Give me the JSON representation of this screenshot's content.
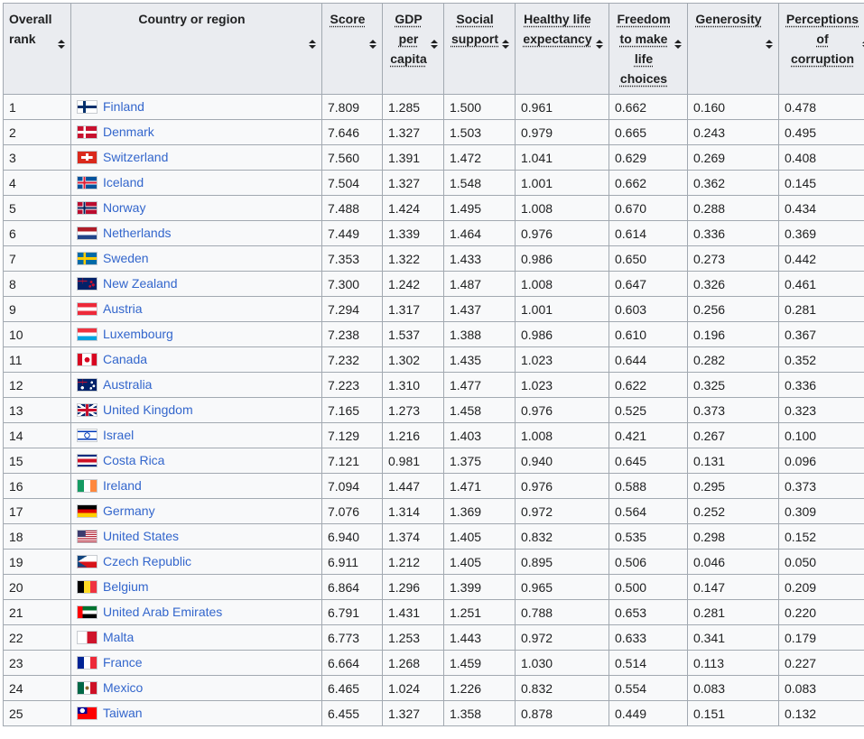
{
  "table": {
    "headers": [
      {
        "key": "rank",
        "label": "Overall rank",
        "abbr": false
      },
      {
        "key": "country",
        "label": "Country or region",
        "abbr": false
      },
      {
        "key": "score",
        "label": "Score",
        "abbr": true
      },
      {
        "key": "gdp",
        "label": "GDP per capita",
        "abbr": true
      },
      {
        "key": "social",
        "label": "Social support",
        "abbr": true
      },
      {
        "key": "health",
        "label": "Healthy life expectancy",
        "abbr": true
      },
      {
        "key": "freedom",
        "label": "Freedom to make life choices",
        "abbr": true
      },
      {
        "key": "generosity",
        "label": "Generosity",
        "abbr": true
      },
      {
        "key": "corruption",
        "label": "Perceptions of corruption",
        "abbr": true
      }
    ],
    "rows": [
      {
        "rank": "1",
        "country": "Finland",
        "flag": "flag-finland-icon",
        "score": "7.809",
        "gdp": "1.285",
        "social": "1.500",
        "health": "0.961",
        "freedom": "0.662",
        "generosity": "0.160",
        "corruption": "0.478"
      },
      {
        "rank": "2",
        "country": "Denmark",
        "flag": "flag-denmark-icon",
        "score": "7.646",
        "gdp": "1.327",
        "social": "1.503",
        "health": "0.979",
        "freedom": "0.665",
        "generosity": "0.243",
        "corruption": "0.495"
      },
      {
        "rank": "3",
        "country": "Switzerland",
        "flag": "flag-switzerland-icon",
        "score": "7.560",
        "gdp": "1.391",
        "social": "1.472",
        "health": "1.041",
        "freedom": "0.629",
        "generosity": "0.269",
        "corruption": "0.408"
      },
      {
        "rank": "4",
        "country": "Iceland",
        "flag": "flag-iceland-icon",
        "score": "7.504",
        "gdp": "1.327",
        "social": "1.548",
        "health": "1.001",
        "freedom": "0.662",
        "generosity": "0.362",
        "corruption": "0.145"
      },
      {
        "rank": "5",
        "country": "Norway",
        "flag": "flag-norway-icon",
        "score": "7.488",
        "gdp": "1.424",
        "social": "1.495",
        "health": "1.008",
        "freedom": "0.670",
        "generosity": "0.288",
        "corruption": "0.434"
      },
      {
        "rank": "6",
        "country": "Netherlands",
        "flag": "flag-netherlands-icon",
        "score": "7.449",
        "gdp": "1.339",
        "social": "1.464",
        "health": "0.976",
        "freedom": "0.614",
        "generosity": "0.336",
        "corruption": "0.369"
      },
      {
        "rank": "7",
        "country": "Sweden",
        "flag": "flag-sweden-icon",
        "score": "7.353",
        "gdp": "1.322",
        "social": "1.433",
        "health": "0.986",
        "freedom": "0.650",
        "generosity": "0.273",
        "corruption": "0.442"
      },
      {
        "rank": "8",
        "country": "New Zealand",
        "flag": "flag-new-zealand-icon",
        "score": "7.300",
        "gdp": "1.242",
        "social": "1.487",
        "health": "1.008",
        "freedom": "0.647",
        "generosity": "0.326",
        "corruption": "0.461"
      },
      {
        "rank": "9",
        "country": "Austria",
        "flag": "flag-austria-icon",
        "score": "7.294",
        "gdp": "1.317",
        "social": "1.437",
        "health": "1.001",
        "freedom": "0.603",
        "generosity": "0.256",
        "corruption": "0.281"
      },
      {
        "rank": "10",
        "country": "Luxembourg",
        "flag": "flag-luxembourg-icon",
        "score": "7.238",
        "gdp": "1.537",
        "social": "1.388",
        "health": "0.986",
        "freedom": "0.610",
        "generosity": "0.196",
        "corruption": "0.367"
      },
      {
        "rank": "11",
        "country": "Canada",
        "flag": "flag-canada-icon",
        "score": "7.232",
        "gdp": "1.302",
        "social": "1.435",
        "health": "1.023",
        "freedom": "0.644",
        "generosity": "0.282",
        "corruption": "0.352"
      },
      {
        "rank": "12",
        "country": "Australia",
        "flag": "flag-australia-icon",
        "score": "7.223",
        "gdp": "1.310",
        "social": "1.477",
        "health": "1.023",
        "freedom": "0.622",
        "generosity": "0.325",
        "corruption": "0.336"
      },
      {
        "rank": "13",
        "country": "United Kingdom",
        "flag": "flag-united-kingdom-icon",
        "score": "7.165",
        "gdp": "1.273",
        "social": "1.458",
        "health": "0.976",
        "freedom": "0.525",
        "generosity": "0.373",
        "corruption": "0.323"
      },
      {
        "rank": "14",
        "country": "Israel",
        "flag": "flag-israel-icon",
        "score": "7.129",
        "gdp": "1.216",
        "social": "1.403",
        "health": "1.008",
        "freedom": "0.421",
        "generosity": "0.267",
        "corruption": "0.100"
      },
      {
        "rank": "15",
        "country": "Costa Rica",
        "flag": "flag-costa-rica-icon",
        "score": "7.121",
        "gdp": "0.981",
        "social": "1.375",
        "health": "0.940",
        "freedom": "0.645",
        "generosity": "0.131",
        "corruption": "0.096"
      },
      {
        "rank": "16",
        "country": "Ireland",
        "flag": "flag-ireland-icon",
        "score": "7.094",
        "gdp": "1.447",
        "social": "1.471",
        "health": "0.976",
        "freedom": "0.588",
        "generosity": "0.295",
        "corruption": "0.373"
      },
      {
        "rank": "17",
        "country": "Germany",
        "flag": "flag-germany-icon",
        "score": "7.076",
        "gdp": "1.314",
        "social": "1.369",
        "health": "0.972",
        "freedom": "0.564",
        "generosity": "0.252",
        "corruption": "0.309"
      },
      {
        "rank": "18",
        "country": "United States",
        "flag": "flag-united-states-icon",
        "score": "6.940",
        "gdp": "1.374",
        "social": "1.405",
        "health": "0.832",
        "freedom": "0.535",
        "generosity": "0.298",
        "corruption": "0.152"
      },
      {
        "rank": "19",
        "country": "Czech Republic",
        "flag": "flag-czech-republic-icon",
        "score": "6.911",
        "gdp": "1.212",
        "social": "1.405",
        "health": "0.895",
        "freedom": "0.506",
        "generosity": "0.046",
        "corruption": "0.050"
      },
      {
        "rank": "20",
        "country": "Belgium",
        "flag": "flag-belgium-icon",
        "score": "6.864",
        "gdp": "1.296",
        "social": "1.399",
        "health": "0.965",
        "freedom": "0.500",
        "generosity": "0.147",
        "corruption": "0.209"
      },
      {
        "rank": "21",
        "country": "United Arab Emirates",
        "flag": "flag-uae-icon",
        "score": "6.791",
        "gdp": "1.431",
        "social": "1.251",
        "health": "0.788",
        "freedom": "0.653",
        "generosity": "0.281",
        "corruption": "0.220"
      },
      {
        "rank": "22",
        "country": "Malta",
        "flag": "flag-malta-icon",
        "score": "6.773",
        "gdp": "1.253",
        "social": "1.443",
        "health": "0.972",
        "freedom": "0.633",
        "generosity": "0.341",
        "corruption": "0.179"
      },
      {
        "rank": "23",
        "country": "France",
        "flag": "flag-france-icon",
        "score": "6.664",
        "gdp": "1.268",
        "social": "1.459",
        "health": "1.030",
        "freedom": "0.514",
        "generosity": "0.113",
        "corruption": "0.227"
      },
      {
        "rank": "24",
        "country": "Mexico",
        "flag": "flag-mexico-icon",
        "score": "6.465",
        "gdp": "1.024",
        "social": "1.226",
        "health": "0.832",
        "freedom": "0.554",
        "generosity": "0.083",
        "corruption": "0.083"
      },
      {
        "rank": "25",
        "country": "Taiwan",
        "flag": "flag-taiwan-icon",
        "score": "6.455",
        "gdp": "1.327",
        "social": "1.358",
        "health": "0.878",
        "freedom": "0.449",
        "generosity": "0.151",
        "corruption": "0.132"
      }
    ]
  }
}
